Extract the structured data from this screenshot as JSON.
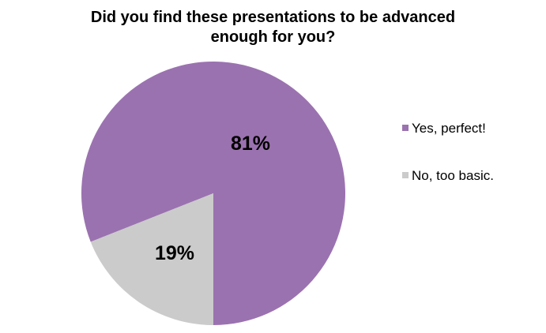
{
  "chart_data": {
    "type": "pie",
    "title": "Did you find these presentations to be advanced enough for you?",
    "title_lines": [
      "Did you find these presentations to be advanced",
      "enough for you?"
    ],
    "categories": [
      "Yes, perfect!",
      "No, too basic."
    ],
    "values": [
      81,
      19
    ],
    "data_labels": [
      "81%",
      "19%"
    ],
    "colors": [
      "#9b72b0",
      "#cbcbcb"
    ],
    "legend_position": "right",
    "start_angle_deg": 180,
    "direction": "clockwise"
  },
  "legend": {
    "items": [
      {
        "label": "Yes, perfect!",
        "color": "#9b72b0"
      },
      {
        "label": "No, too basic.",
        "color": "#cbcbcb"
      }
    ]
  },
  "labels": {
    "yes": "81%",
    "no": "19%"
  }
}
